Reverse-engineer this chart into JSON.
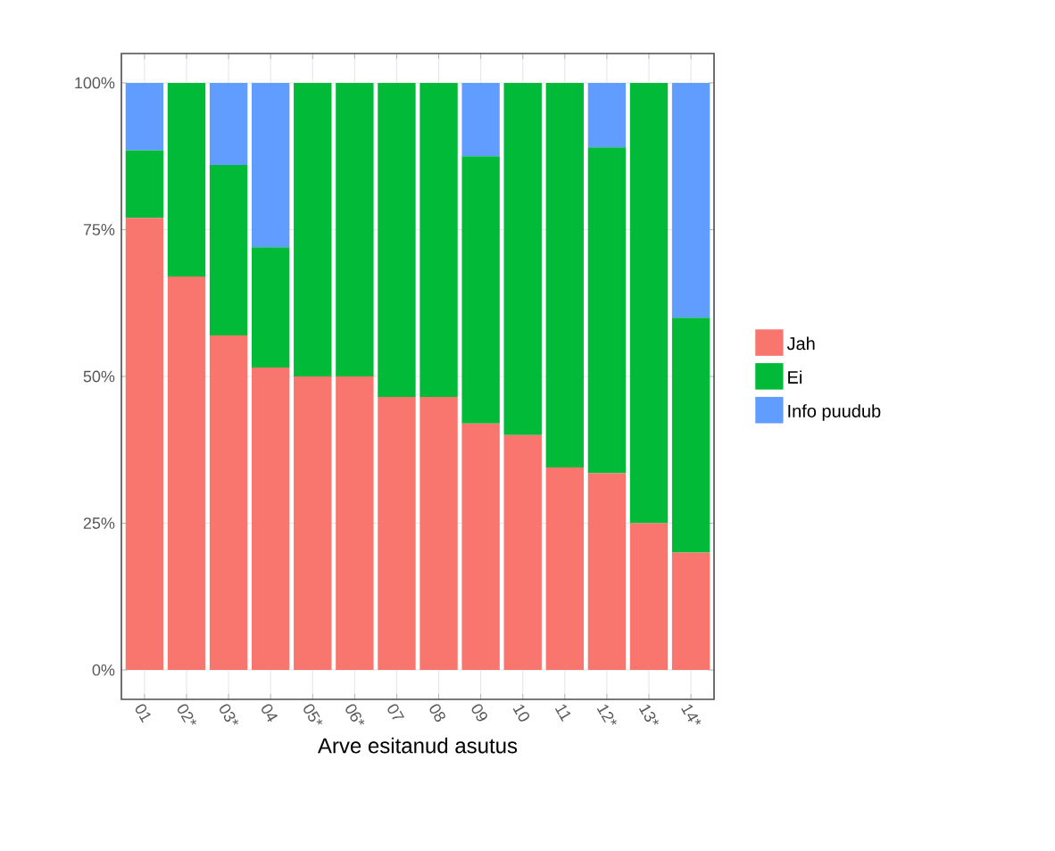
{
  "chart_data": {
    "type": "bar",
    "stacked": true,
    "xlabel": "Arve esitanud asutus",
    "categories": [
      "01",
      "02*",
      "03*",
      "04",
      "05*",
      "06*",
      "07",
      "08",
      "09",
      "10",
      "11",
      "12*",
      "13*",
      "14*"
    ],
    "series": [
      {
        "name": "Jah",
        "color": "#f8766d",
        "values": [
          77,
          67,
          57,
          51.5,
          50,
          50,
          46.5,
          46.5,
          42,
          40,
          34.5,
          33.5,
          25,
          20
        ]
      },
      {
        "name": "Ei",
        "color": "#00ba38",
        "values": [
          11.5,
          33,
          29,
          20.5,
          50,
          50,
          53.5,
          53.5,
          45.5,
          60,
          65.5,
          55.5,
          75,
          40
        ]
      },
      {
        "name": "Info puudub",
        "color": "#619cff",
        "values": [
          11.5,
          0,
          14,
          28,
          0,
          0,
          0,
          0,
          12.5,
          0,
          0,
          11,
          0,
          40
        ]
      }
    ],
    "ylim": [
      0,
      100
    ],
    "yticks": [
      {
        "value": 0,
        "label": "0%"
      },
      {
        "value": 25,
        "label": "25%"
      },
      {
        "value": 50,
        "label": "50%"
      },
      {
        "value": 75,
        "label": "75%"
      },
      {
        "value": 100,
        "label": "100%"
      }
    ],
    "grid": true,
    "legend": "right"
  }
}
